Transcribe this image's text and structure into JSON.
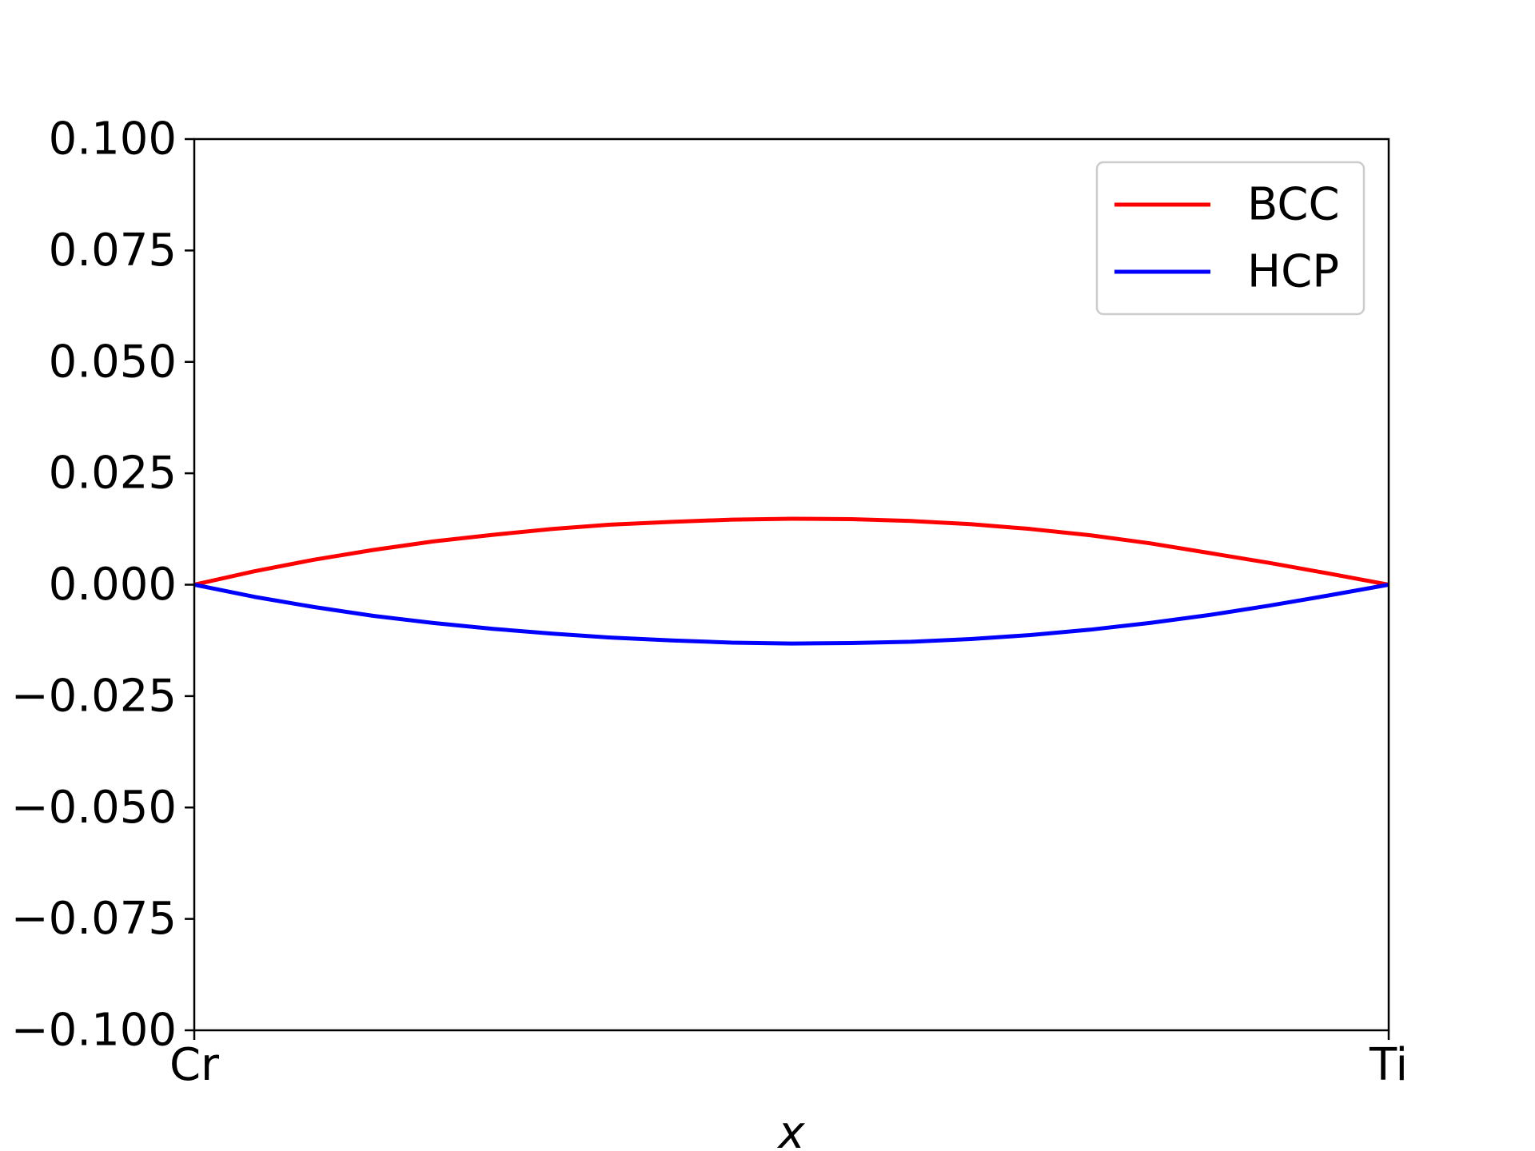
{
  "chart_data": {
    "type": "line",
    "xlabel": "x",
    "ylabel": "",
    "title": "",
    "xlim": [
      0,
      1
    ],
    "ylim": [
      -0.1,
      0.1
    ],
    "x_ticks": [
      {
        "value": 0,
        "label": "Cr"
      },
      {
        "value": 1,
        "label": "Ti"
      }
    ],
    "y_ticks": [
      {
        "value": 0.1,
        "label": "0.100"
      },
      {
        "value": 0.075,
        "label": "0.075"
      },
      {
        "value": 0.05,
        "label": "0.050"
      },
      {
        "value": 0.025,
        "label": "0.025"
      },
      {
        "value": 0.0,
        "label": "0.000"
      },
      {
        "value": -0.025,
        "label": "−0.025"
      },
      {
        "value": -0.05,
        "label": "−0.050"
      },
      {
        "value": -0.075,
        "label": "−0.075"
      },
      {
        "value": -0.1,
        "label": "−0.100"
      }
    ],
    "grid": false,
    "legend_position": "top-right",
    "x": [
      0,
      0.05,
      0.1,
      0.15,
      0.2,
      0.25,
      0.3,
      0.35,
      0.4,
      0.45,
      0.5,
      0.55,
      0.6,
      0.65,
      0.7,
      0.75,
      0.8,
      0.85,
      0.9,
      0.95,
      1.0
    ],
    "series": [
      {
        "name": "BCC",
        "color": "#ff0000",
        "values": [
          0,
          0.003,
          0.0056,
          0.0078,
          0.0097,
          0.0112,
          0.0125,
          0.0135,
          0.0141,
          0.0146,
          0.0148,
          0.0147,
          0.0143,
          0.0136,
          0.0125,
          0.0111,
          0.0093,
          0.0071,
          0.0049,
          0.0025,
          0
        ]
      },
      {
        "name": "HCP",
        "color": "#0000ff",
        "values": [
          0,
          -0.0027,
          -0.005,
          -0.007,
          -0.0086,
          -0.0099,
          -0.011,
          -0.0119,
          -0.0125,
          -0.013,
          -0.0132,
          -0.0131,
          -0.0128,
          -0.0122,
          -0.0113,
          -0.0101,
          -0.0086,
          -0.0068,
          -0.0047,
          -0.0024,
          0
        ]
      }
    ]
  }
}
